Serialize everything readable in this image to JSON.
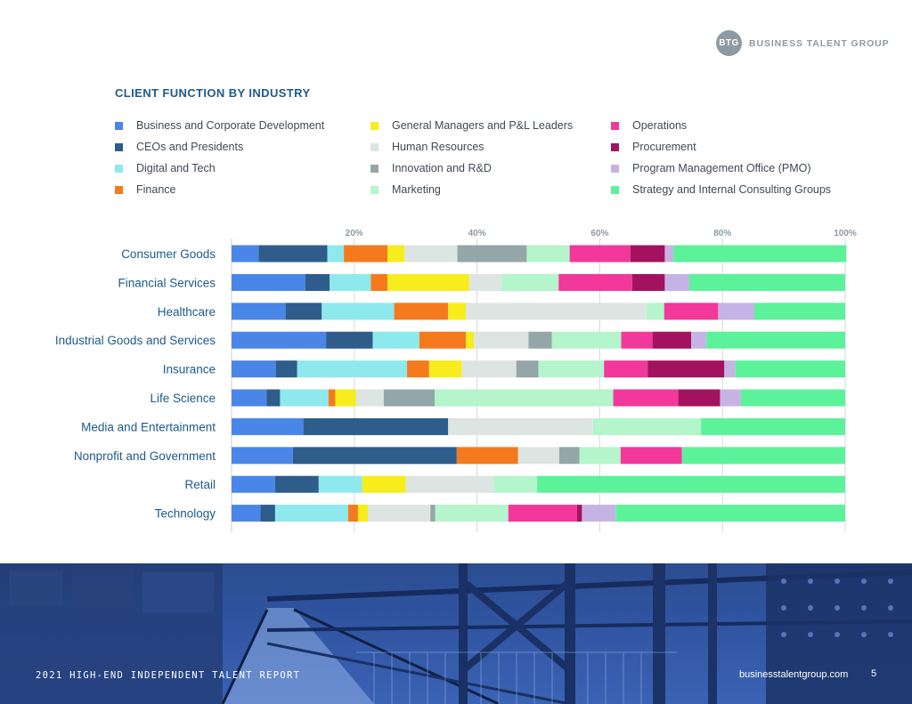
{
  "brand": {
    "logo_mark": "BTG",
    "logo_name": "BUSINESS TALENT GROUP"
  },
  "chart_data": {
    "type": "bar",
    "orientation": "horizontal",
    "stacked": true,
    "normalized": true,
    "title": "CLIENT FUNCTION BY INDUSTRY",
    "xlim": [
      0,
      100
    ],
    "x_ticks": [
      20,
      40,
      60,
      80,
      100
    ],
    "x_tick_labels": [
      "20%",
      "40%",
      "60%",
      "80%",
      "100%"
    ],
    "grid": true,
    "legend_position": "top",
    "categories": [
      "Consumer Goods",
      "Financial Services",
      "Healthcare",
      "Industrial Goods and Services",
      "Insurance",
      "Life Science",
      "Media and Entertainment",
      "Nonprofit and Government",
      "Retail",
      "Technology"
    ],
    "series": [
      {
        "name": "Business and Corporate Development",
        "color": "#4a86e8",
        "values": [
          4.4,
          12.0,
          8.8,
          15.4,
          7.2,
          5.7,
          11.7,
          10.0,
          7.1,
          4.7
        ]
      },
      {
        "name": "CEOs and Presidents",
        "color": "#2e5d8c",
        "values": [
          11.2,
          4.0,
          5.9,
          7.6,
          3.5,
          2.2,
          23.6,
          26.7,
          7.1,
          2.4
        ]
      },
      {
        "name": "Digital and Tech",
        "color": "#8ee9ec",
        "values": [
          2.7,
          6.7,
          11.8,
          7.6,
          17.9,
          7.9,
          0,
          0,
          7.1,
          11.9
        ]
      },
      {
        "name": "Finance",
        "color": "#f57a1e",
        "values": [
          7.1,
          2.7,
          8.8,
          7.6,
          3.6,
          1.1,
          0,
          10.0,
          0,
          1.6
        ]
      },
      {
        "name": "General Managers and P&L Leaders",
        "color": "#f7ec1c",
        "values": [
          2.8,
          13.3,
          2.9,
          1.3,
          5.3,
          3.4,
          0,
          0,
          7.1,
          1.6
        ]
      },
      {
        "name": "Human Resources",
        "color": "#dde5e2",
        "values": [
          8.6,
          5.3,
          29.4,
          8.9,
          8.9,
          4.5,
          23.6,
          6.7,
          14.3,
          10.2
        ]
      },
      {
        "name": "Innovation and R&D",
        "color": "#94a6a8",
        "values": [
          11.3,
          0,
          0,
          3.8,
          3.6,
          8.3,
          0,
          3.3,
          0,
          0.8
        ]
      },
      {
        "name": "Marketing",
        "color": "#b4f5cb",
        "values": [
          7.0,
          9.3,
          2.9,
          11.3,
          10.7,
          29.1,
          17.6,
          6.7,
          7.1,
          11.9
        ]
      },
      {
        "name": "Operations",
        "color": "#f2389a",
        "values": [
          9.9,
          12.0,
          8.8,
          5.1,
          7.1,
          10.6,
          0,
          10.0,
          0,
          11.2
        ]
      },
      {
        "name": "Procurement",
        "color": "#a3125e",
        "values": [
          5.6,
          5.3,
          0,
          6.3,
          12.5,
          6.8,
          0,
          0,
          0,
          0.8
        ]
      },
      {
        "name": "Program Management Office (PMO)",
        "color": "#c6b3e6",
        "values": [
          1.4,
          4.0,
          5.9,
          2.5,
          1.8,
          3.4,
          0,
          0,
          0,
          5.5
        ]
      },
      {
        "name": "Strategy and Internal Consulting Groups",
        "color": "#5cf29a",
        "values": [
          28.2,
          25.4,
          14.8,
          22.6,
          17.9,
          17.0,
          23.5,
          26.6,
          50.2,
          37.4
        ]
      }
    ]
  },
  "footer": {
    "report_title": "2021 HIGH-END INDEPENDENT TALENT REPORT",
    "site": "businesstalentgroup.com",
    "page_number": "5"
  }
}
